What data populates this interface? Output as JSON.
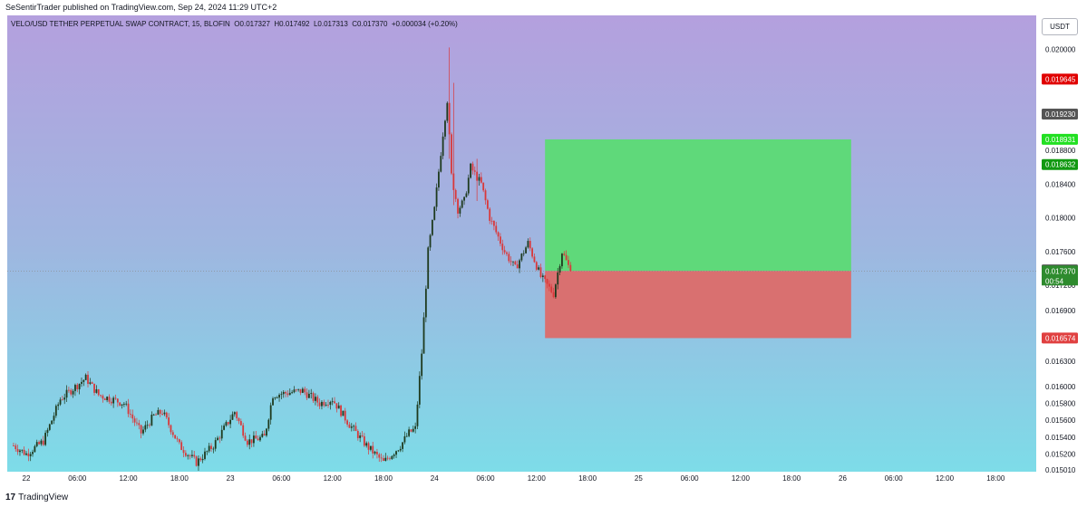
{
  "header": {
    "publisher_line": "SeSentirTrader published on TradingView.com, Sep 24, 2024 11:29 UTC+2"
  },
  "chart_header": {
    "symbol_line": "VELO/USD TETHER PERPETUAL SWAP CONTRACT, 15, BLOFIN",
    "open_label": "O",
    "open": "0.017327",
    "high_label": "H",
    "high": "0.017492",
    "low_label": "L",
    "low": "0.017313",
    "close_label": "C",
    "close": "0.017370",
    "change": "+0.000034 (+0.20%)"
  },
  "currency_button": "USDT",
  "footer": {
    "brand": "TradingView",
    "logo_glyph": "17"
  },
  "colors": {
    "bg_top": "#b4a0de",
    "bg_bottom": "#7ddce8",
    "candle_up": "#1e3a1e",
    "candle_down": "#d9383a",
    "profit_zone": "#5fd97a",
    "loss_zone": "#d97070",
    "price_line": "#888888"
  },
  "chart_data": {
    "type": "candlestick",
    "symbol": "VELO/USD",
    "interval": "15",
    "ylim": [
      0.01499,
      0.0204
    ],
    "y_ticks": [
      "0.020000",
      "0.018800",
      "0.018400",
      "0.018000",
      "0.017600",
      "0.017200",
      "0.016900",
      "0.016300",
      "0.016000",
      "0.015800",
      "0.015600",
      "0.015400",
      "0.015200",
      "0.015010"
    ],
    "x_ticks": [
      "22",
      "06:00",
      "12:00",
      "18:00",
      "23",
      "06:00",
      "12:00",
      "18:00",
      "24",
      "06:00",
      "12:00",
      "18:00",
      "25",
      "06:00",
      "12:00",
      "18:00",
      "26",
      "06:00",
      "12:00",
      "18:00"
    ],
    "x_tick_bars": [
      0,
      24,
      48,
      72,
      96,
      120,
      144,
      168,
      192,
      216,
      240,
      264,
      288,
      312,
      336,
      360,
      384,
      408,
      432,
      456
    ],
    "price_tags": [
      {
        "value": "0.019645",
        "price": 0.019645,
        "bg": "#e00000",
        "fg": "#ffffff"
      },
      {
        "value": "0.019230",
        "price": 0.01923,
        "bg": "#555555",
        "fg": "#ffffff"
      },
      {
        "value": "0.018931",
        "price": 0.018931,
        "bg": "#22e022",
        "fg": "#ffffff"
      },
      {
        "value": "0.018632",
        "price": 0.018632,
        "bg": "#119911",
        "fg": "#ffffff"
      },
      {
        "value": "0.017382",
        "price": 0.017382,
        "bg": "#555555",
        "fg": "#ffffff"
      },
      {
        "value": "0.017370",
        "price": 0.01737,
        "bg": "#2e8b2e",
        "fg": "#ffffff"
      },
      {
        "value": "0.016574",
        "price": 0.016574,
        "bg": "#e04040",
        "fg": "#ffffff"
      }
    ],
    "countdown": "00:54",
    "position": {
      "entry": 0.01737,
      "target": 0.01893,
      "stop": 0.016574,
      "start_bar": 244,
      "end_bar": 388
    },
    "current_price": 0.01737,
    "candles": {
      "fields": [
        "open",
        "high",
        "low",
        "close"
      ],
      "start_bar": -6,
      "anchors": [
        [
          -6,
          0.0153
        ],
        [
          0,
          0.0152
        ],
        [
          8,
          0.01535
        ],
        [
          16,
          0.01585
        ],
        [
          28,
          0.0161
        ],
        [
          34,
          0.0159
        ],
        [
          46,
          0.0158
        ],
        [
          54,
          0.01545
        ],
        [
          60,
          0.01565
        ],
        [
          64,
          0.0157
        ],
        [
          72,
          0.0153
        ],
        [
          80,
          0.0151
        ],
        [
          88,
          0.0153
        ],
        [
          98,
          0.0157
        ],
        [
          104,
          0.01535
        ],
        [
          112,
          0.0154
        ],
        [
          116,
          0.0159
        ],
        [
          130,
          0.01595
        ],
        [
          138,
          0.0158
        ],
        [
          144,
          0.01585
        ],
        [
          152,
          0.01555
        ],
        [
          160,
          0.0153
        ],
        [
          168,
          0.0151
        ],
        [
          176,
          0.0153
        ],
        [
          180,
          0.01545
        ],
        [
          183,
          0.0155
        ],
        [
          186,
          0.0164
        ],
        [
          189,
          0.0176
        ],
        [
          192,
          0.0181
        ],
        [
          196,
          0.019
        ],
        [
          198,
          0.0194
        ],
        [
          200,
          0.0185
        ],
        [
          203,
          0.0181
        ],
        [
          206,
          0.0182
        ],
        [
          209,
          0.0186
        ],
        [
          214,
          0.0184
        ],
        [
          218,
          0.018
        ],
        [
          225,
          0.0176
        ],
        [
          230,
          0.0174
        ],
        [
          236,
          0.0177
        ],
        [
          242,
          0.0173
        ],
        [
          248,
          0.0171
        ],
        [
          252,
          0.0176
        ],
        [
          256,
          0.01737
        ]
      ],
      "spikes": [
        [
          199,
          0.02002,
          0.0187
        ],
        [
          201,
          0.0196,
          0.01815
        ],
        [
          212,
          0.0187,
          0.0182
        ]
      ]
    }
  }
}
